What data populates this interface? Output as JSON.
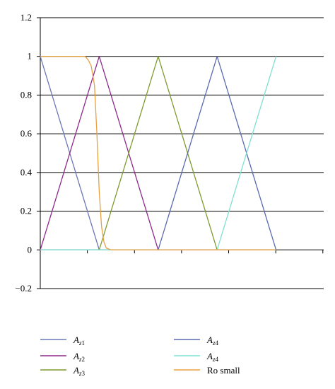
{
  "chart_data": {
    "type": "line",
    "title": "",
    "xlabel": "",
    "ylabel": "",
    "xlim": [
      0,
      6
    ],
    "ylim": [
      -0.2,
      1.2
    ],
    "y_ticks": [
      -0.2,
      0,
      0.2,
      0.4,
      0.6,
      0.8,
      1,
      1.2
    ],
    "y_tick_labels": [
      "−0.2",
      "0",
      "0.2",
      "0.4",
      "0.6",
      "0.8",
      "1",
      "1.2"
    ],
    "x_tick_count": 6,
    "grid": "horizontal",
    "legend_placement": "bottom",
    "series": [
      {
        "name": "Az1",
        "name_main": "A",
        "name_sub": "z1",
        "color": "#6b78b8",
        "x": [
          0,
          1.25,
          5
        ],
        "y": [
          1,
          0,
          0
        ]
      },
      {
        "name": "Az2",
        "name_main": "A",
        "name_sub": "z2",
        "color": "#8e2a8c",
        "x": [
          0,
          1.25,
          2.5,
          5
        ],
        "y": [
          0,
          1,
          0,
          0
        ]
      },
      {
        "name": "Az3",
        "name_main": "A",
        "name_sub": "z3",
        "color": "#7f9a2e",
        "x": [
          0,
          1.25,
          2.5,
          3.75,
          5
        ],
        "y": [
          0,
          0,
          1,
          0,
          0
        ]
      },
      {
        "name": "Az4",
        "name_main": "A",
        "name_sub": "z4",
        "color": "#5a6ab0",
        "x": [
          0,
          2.5,
          3.75,
          5
        ],
        "y": [
          0,
          0,
          1,
          0
        ]
      },
      {
        "name": "Az4",
        "name_main": "A",
        "name_sub": "z4",
        "color": "#7fe0d0",
        "x": [
          0,
          3.75,
          5
        ],
        "y": [
          0,
          0,
          1
        ]
      },
      {
        "name": "Ro small",
        "name_main": "Ro small",
        "name_sub": "",
        "color": "#e8a040",
        "x": [
          0,
          0.95,
          1.02,
          1.08,
          1.15,
          1.2,
          1.25,
          1.3,
          1.35,
          1.4,
          1.5,
          5
        ],
        "y": [
          1,
          1,
          0.98,
          0.95,
          0.85,
          0.6,
          0.3,
          0.12,
          0.04,
          0.01,
          0,
          0
        ]
      }
    ]
  }
}
